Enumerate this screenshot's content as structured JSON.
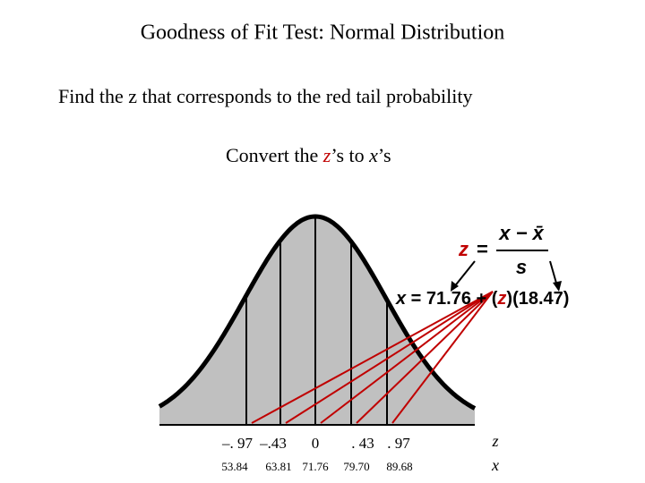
{
  "title": "Goodness of Fit Test:  Normal Distribution",
  "step1": "Find the z that corresponds to the red tail probability",
  "step2": {
    "pre": "Convert the ",
    "z": "z",
    "mid": "’s to ",
    "x": "x",
    "post": "’s"
  },
  "formula1": {
    "z": "z",
    "eq": "=",
    "numerator": "x − x̄",
    "denominator": "s"
  },
  "formula2": {
    "lhs": "x",
    "rest": " = 71.76 + (",
    "z": "z",
    "tail": ")(18.47)"
  },
  "z_labels": [
    "–. 97",
    "–.43",
    "0",
    ". 43",
    ". 97"
  ],
  "x_labels": [
    "53.84",
    "63.81",
    "71.76",
    "79.70",
    "89.68"
  ],
  "z_axis": "z",
  "x_axis": "x"
}
